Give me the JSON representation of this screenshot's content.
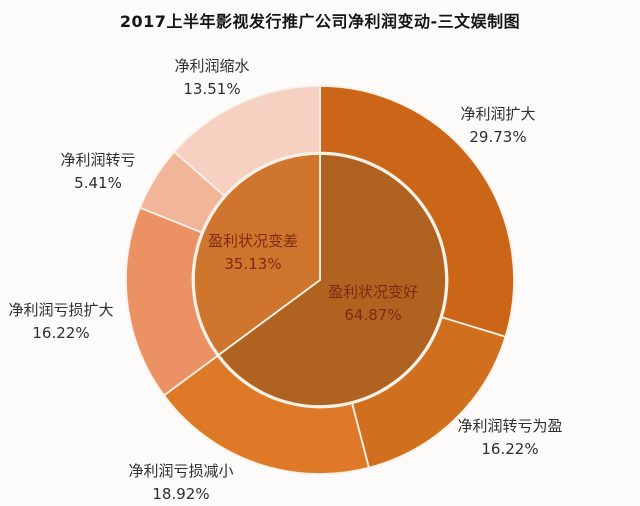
{
  "chart_data": {
    "type": "pie",
    "subtype": "donut-sunburst",
    "title": "2017上半年影视发行推广公司净利润变动-三文娱制图",
    "direction": "clockwise",
    "start_angle_deg": 0,
    "legend": "none",
    "outer_ring": [
      {
        "label": "净利润扩大",
        "value": 29.73,
        "display": "29.73%",
        "color": "#cb6619"
      },
      {
        "label": "净利润转亏为盈",
        "value": 16.22,
        "display": "16.22%",
        "color": "#d0701e"
      },
      {
        "label": "净利润亏损减小",
        "value": 18.92,
        "display": "18.92%",
        "color": "#de7a27"
      },
      {
        "label": "净利润亏损扩大",
        "value": 16.22,
        "display": "16.22%",
        "color": "#ec9164"
      },
      {
        "label": "净利润转亏",
        "value": 5.41,
        "display": "5.41%",
        "color": "#f2b59a"
      },
      {
        "label": "净利润缩水",
        "value": 13.51,
        "display": "13.51%",
        "color": "#f6d0c1"
      }
    ],
    "inner_pie": [
      {
        "label": "盈利状况变好",
        "value": 64.87,
        "display": "64.87%",
        "color": "#b06220"
      },
      {
        "label": "盈利状况变差",
        "value": 35.13,
        "display": "35.13%",
        "color": "#d0752d"
      }
    ],
    "colors": {
      "background": "#fcfbf9",
      "slice_border": "#f8f1e8",
      "outer_label_text": "#2f2f2f",
      "inner_label_text": "#7d2a12",
      "title_text": "#151515"
    }
  }
}
